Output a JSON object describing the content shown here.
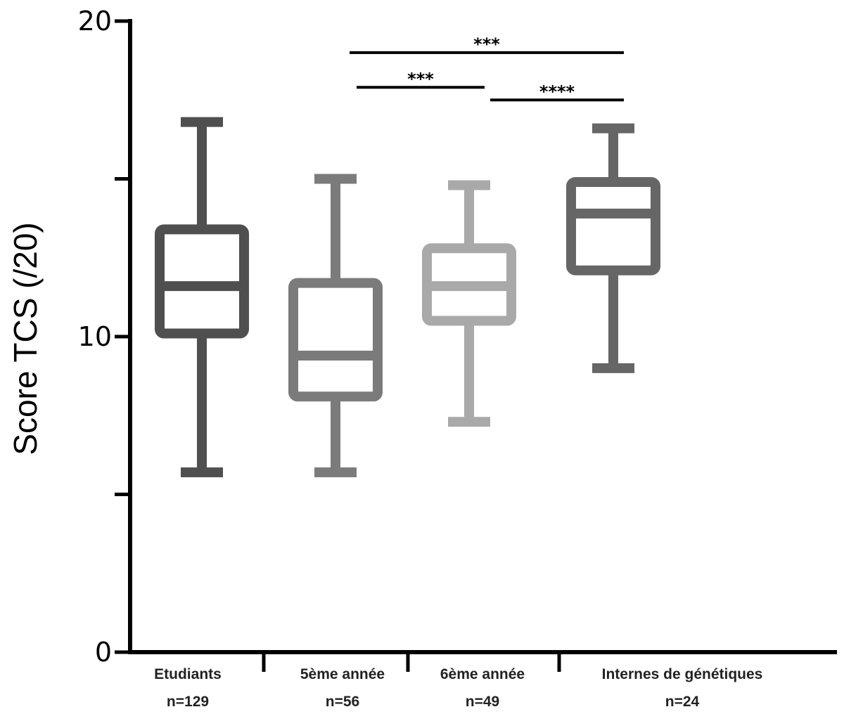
{
  "chart_data": {
    "type": "box",
    "ylabel": "Score TCS (/20)",
    "ylim": [
      0,
      20
    ],
    "yticks": [
      0,
      5,
      10,
      15,
      20
    ],
    "ytick_labels": [
      "0",
      "",
      "10",
      "",
      "20"
    ],
    "grid": false,
    "categories": [
      {
        "name": "Etudiants",
        "n": "n=129",
        "min": 5.7,
        "q1": 10.1,
        "median": 11.6,
        "q3": 13.4,
        "max": 16.8,
        "color": "#4f4f4f"
      },
      {
        "name": "5ème année",
        "n": "n=56",
        "min": 5.7,
        "q1": 8.1,
        "median": 9.4,
        "q3": 11.7,
        "max": 15.0,
        "color": "#7b7b7b"
      },
      {
        "name": "6ème année",
        "n": "n=49",
        "min": 7.3,
        "q1": 10.5,
        "median": 11.6,
        "q3": 12.8,
        "max": 14.8,
        "color": "#a9a9a9"
      },
      {
        "name": "Internes de génétiques",
        "n": "n=24",
        "min": 9.0,
        "q1": 12.1,
        "median": 13.9,
        "q3": 14.9,
        "max": 16.6,
        "color": "#666666"
      }
    ],
    "annotations": [
      {
        "from": 1,
        "to": 3,
        "y": 19.0,
        "label": "***"
      },
      {
        "from": 1,
        "to": 2,
        "y": 17.9,
        "label": "***"
      },
      {
        "from": 2,
        "to": 3,
        "y": 17.5,
        "label": "****"
      }
    ]
  }
}
